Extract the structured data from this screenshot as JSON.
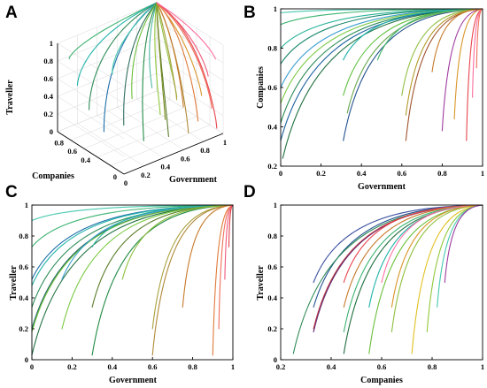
{
  "figure": {
    "panels": [
      {
        "id": "A",
        "letter": "A"
      },
      {
        "id": "B",
        "letter": "B"
      },
      {
        "id": "C",
        "letter": "C"
      },
      {
        "id": "D",
        "letter": "D"
      }
    ]
  },
  "chart_data": [
    {
      "panel": "A",
      "type": "line",
      "projection": "3d",
      "xlabel": "Government",
      "ylabel": "Companies",
      "zlabel": "Traveller",
      "x_ticks": [
        "0",
        "0.2",
        "0.4",
        "0.6",
        "0.8",
        "1"
      ],
      "y_ticks": [
        "0",
        "0.4",
        "0.6",
        "0.8"
      ],
      "z_ticks": [
        "0",
        "0.2",
        "0.4",
        "0.6",
        "0.8",
        "1"
      ],
      "xlim": [
        0,
        1
      ],
      "ylim": [
        0,
        1
      ],
      "zlim": [
        0,
        1
      ],
      "grid": true,
      "end_point": [
        1,
        1,
        1
      ],
      "series": [
        {
          "start": [
            0.05,
            0.9,
            0.85
          ],
          "color": "#3cb371"
        },
        {
          "start": [
            0.1,
            0.85,
            0.55
          ],
          "color": "#20b2aa"
        },
        {
          "start": [
            0.15,
            0.75,
            0.3
          ],
          "color": "#2e8b57"
        },
        {
          "start": [
            0.2,
            0.6,
            0.1
          ],
          "color": "#1e6fa8"
        },
        {
          "start": [
            0.25,
            0.55,
            0.75
          ],
          "color": "#48c9b0"
        },
        {
          "start": [
            0.3,
            0.45,
            0.2
          ],
          "color": "#2f6f5f"
        },
        {
          "start": [
            0.35,
            0.4,
            0.5
          ],
          "color": "#6bbf3a"
        },
        {
          "start": [
            0.4,
            0.3,
            0.05
          ],
          "color": "#238b45"
        },
        {
          "start": [
            0.45,
            0.25,
            0.65
          ],
          "color": "#4db8a0"
        },
        {
          "start": [
            0.5,
            0.2,
            0.35
          ],
          "color": "#90c83c"
        },
        {
          "start": [
            0.55,
            0.15,
            0.1
          ],
          "color": "#5a7d2a"
        },
        {
          "start": [
            0.6,
            0.1,
            0.55
          ],
          "color": "#8fbf3f"
        },
        {
          "start": [
            0.65,
            0.35,
            0.15
          ],
          "color": "#7a8c20"
        },
        {
          "start": [
            0.7,
            0.25,
            0.4
          ],
          "color": "#a8a03a"
        },
        {
          "start": [
            0.75,
            0.15,
            0.05
          ],
          "color": "#b08a3a"
        },
        {
          "start": [
            0.8,
            0.3,
            0.25
          ],
          "color": "#c77a2a"
        },
        {
          "start": [
            0.85,
            0.1,
            0.45
          ],
          "color": "#d9962b"
        },
        {
          "start": [
            0.88,
            0.2,
            0.1
          ],
          "color": "#e07a3a"
        },
        {
          "start": [
            0.92,
            0.05,
            0.3
          ],
          "color": "#ef6f5a"
        },
        {
          "start": [
            0.95,
            0.15,
            0.6
          ],
          "color": "#f05a7a"
        },
        {
          "start": [
            0.97,
            0.05,
            0.05
          ],
          "color": "#e8454e"
        },
        {
          "start": [
            0.99,
            0.1,
            0.8
          ],
          "color": "#ff6fa0"
        }
      ]
    },
    {
      "panel": "B",
      "type": "line",
      "xlabel": "Government",
      "ylabel": "Companies",
      "x_ticks": [
        "0",
        "0.2",
        "0.4",
        "0.6",
        "0.8",
        "1"
      ],
      "y_ticks": [
        "0.2",
        "0.4",
        "0.6",
        "0.8",
        "1"
      ],
      "xlim": [
        0,
        1
      ],
      "ylim": [
        0.2,
        1
      ],
      "grid": false,
      "end_point": [
        1,
        1
      ],
      "series": [
        {
          "start": [
            0.0,
            0.98
          ],
          "color": "#48c9b0"
        },
        {
          "start": [
            0.0,
            0.92
          ],
          "color": "#3cb371"
        },
        {
          "start": [
            0.0,
            0.8
          ],
          "color": "#2bb39a"
        },
        {
          "start": [
            0.0,
            0.72
          ],
          "color": "#1f8a70"
        },
        {
          "start": [
            0.0,
            0.6
          ],
          "color": "#3a9dd1"
        },
        {
          "start": [
            0.0,
            0.52
          ],
          "color": "#7ac943"
        },
        {
          "start": [
            0.0,
            0.42
          ],
          "color": "#2e8b57"
        },
        {
          "start": [
            0.0,
            0.33
          ],
          "color": "#1a5f9e"
        },
        {
          "start": [
            0.01,
            0.24
          ],
          "color": "#1f6f3f"
        },
        {
          "start": [
            0.31,
            0.74
          ],
          "color": "#20b2aa"
        },
        {
          "start": [
            0.31,
            0.56
          ],
          "color": "#5bbf3a"
        },
        {
          "start": [
            0.31,
            0.33
          ],
          "color": "#23528f"
        },
        {
          "start": [
            0.33,
            0.47
          ],
          "color": "#6aa84f"
        },
        {
          "start": [
            0.48,
            0.74
          ],
          "color": "#4db870"
        },
        {
          "start": [
            0.6,
            0.56
          ],
          "color": "#8fbf3f"
        },
        {
          "start": [
            0.62,
            0.33
          ],
          "color": "#a0522d"
        },
        {
          "start": [
            0.62,
            0.46
          ],
          "color": "#b39b2a"
        },
        {
          "start": [
            0.75,
            0.68
          ],
          "color": "#c77a2a"
        },
        {
          "start": [
            0.8,
            0.38
          ],
          "color": "#9e3b9e"
        },
        {
          "start": [
            0.86,
            0.44
          ],
          "color": "#d9962b"
        },
        {
          "start": [
            0.92,
            0.33
          ],
          "color": "#e8454e"
        },
        {
          "start": [
            0.95,
            0.55
          ],
          "color": "#ff6fa0"
        },
        {
          "start": [
            0.97,
            0.7
          ],
          "color": "#ef6f5a"
        }
      ]
    },
    {
      "panel": "C",
      "type": "line",
      "xlabel": "Government",
      "ylabel": "Traveller",
      "x_ticks": [
        "0",
        "0.2",
        "0.4",
        "0.6",
        "0.8",
        "1"
      ],
      "y_ticks": [
        "0",
        "0.2",
        "0.4",
        "0.6",
        "0.8",
        "1"
      ],
      "xlim": [
        0,
        1
      ],
      "ylim": [
        0,
        1
      ],
      "grid": false,
      "end_point": [
        1,
        1
      ],
      "series": [
        {
          "start": [
            0.0,
            0.9
          ],
          "color": "#48c9b0"
        },
        {
          "start": [
            0.0,
            0.73
          ],
          "color": "#3cb371"
        },
        {
          "start": [
            0.0,
            0.52
          ],
          "color": "#1f6fa8"
        },
        {
          "start": [
            0.0,
            0.48
          ],
          "color": "#20b2aa"
        },
        {
          "start": [
            0.0,
            0.34
          ],
          "color": "#2e8b57"
        },
        {
          "start": [
            0.0,
            0.2
          ],
          "color": "#1a5f5e"
        },
        {
          "start": [
            0.0,
            0.18
          ],
          "color": "#6bbf3a"
        },
        {
          "start": [
            0.0,
            0.03
          ],
          "color": "#1f6f3f"
        },
        {
          "start": [
            0.15,
            0.52
          ],
          "color": "#3a9dd1"
        },
        {
          "start": [
            0.15,
            0.2
          ],
          "color": "#7ac943"
        },
        {
          "start": [
            0.3,
            0.73
          ],
          "color": "#2bb39a"
        },
        {
          "start": [
            0.3,
            0.34
          ],
          "color": "#5a7d2a"
        },
        {
          "start": [
            0.3,
            0.03
          ],
          "color": "#238b45"
        },
        {
          "start": [
            0.45,
            0.52
          ],
          "color": "#8fbf3f"
        },
        {
          "start": [
            0.6,
            0.2
          ],
          "color": "#a8a03a"
        },
        {
          "start": [
            0.6,
            0.03
          ],
          "color": "#b08a3a"
        },
        {
          "start": [
            0.75,
            0.34
          ],
          "color": "#c77a2a"
        },
        {
          "start": [
            0.9,
            0.03
          ],
          "color": "#e07a3a"
        },
        {
          "start": [
            0.93,
            0.2
          ],
          "color": "#ef6f5a"
        },
        {
          "start": [
            0.96,
            0.52
          ],
          "color": "#f05a7a"
        },
        {
          "start": [
            0.98,
            0.73
          ],
          "color": "#e8454e"
        }
      ]
    },
    {
      "panel": "D",
      "type": "line",
      "xlabel": "Companies",
      "ylabel": "Traveller",
      "x_ticks": [
        "0.2",
        "0.4",
        "0.6",
        "0.8",
        "1"
      ],
      "y_ticks": [
        "0",
        "0.2",
        "0.4",
        "0.6",
        "0.8",
        "1"
      ],
      "xlim": [
        0.2,
        1
      ],
      "ylim": [
        0,
        1
      ],
      "grid": false,
      "end_point": [
        1,
        1
      ],
      "series": [
        {
          "start": [
            0.33,
            0.5
          ],
          "color": "#3a4fa0"
        },
        {
          "start": [
            0.33,
            0.34
          ],
          "color": "#23528f"
        },
        {
          "start": [
            0.33,
            0.18
          ],
          "color": "#5a2a7a"
        },
        {
          "start": [
            0.25,
            0.04
          ],
          "color": "#2e8b57"
        },
        {
          "start": [
            0.33,
            0.2
          ],
          "color": "#b03040"
        },
        {
          "start": [
            0.45,
            0.5
          ],
          "color": "#e8454e"
        },
        {
          "start": [
            0.45,
            0.34
          ],
          "color": "#c77a2a"
        },
        {
          "start": [
            0.45,
            0.18
          ],
          "color": "#3cb371"
        },
        {
          "start": [
            0.45,
            0.04
          ],
          "color": "#1f6f3f"
        },
        {
          "start": [
            0.55,
            0.34
          ],
          "color": "#20b2aa"
        },
        {
          "start": [
            0.55,
            0.04
          ],
          "color": "#6bbf3a"
        },
        {
          "start": [
            0.6,
            0.5
          ],
          "color": "#ff6fa0"
        },
        {
          "start": [
            0.64,
            0.18
          ],
          "color": "#8fbf3f"
        },
        {
          "start": [
            0.64,
            0.34
          ],
          "color": "#d9962b"
        },
        {
          "start": [
            0.72,
            0.04
          ],
          "color": "#e0c020"
        },
        {
          "start": [
            0.78,
            0.18
          ],
          "color": "#90c83c"
        },
        {
          "start": [
            0.82,
            0.34
          ],
          "color": "#48c9b0"
        },
        {
          "start": [
            0.85,
            0.5
          ],
          "color": "#9e3b9e"
        }
      ]
    }
  ]
}
